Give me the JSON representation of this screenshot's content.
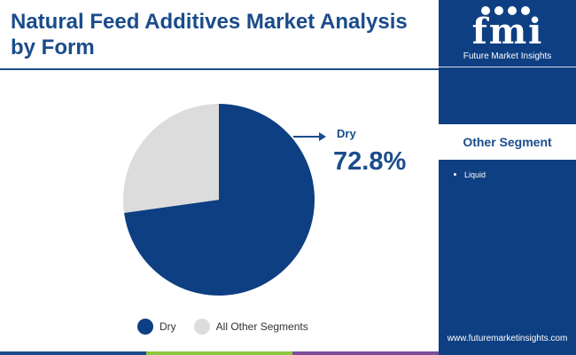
{
  "title": "Natural Feed Additives Market Analysis by Form",
  "brand": {
    "logo_mark": "fmi",
    "name": "Future Market Insights",
    "website": "www.futuremarketinsights.com"
  },
  "other_segment": {
    "title": "Other Segment",
    "items": [
      "Liquid"
    ]
  },
  "callout": {
    "label": "Dry",
    "value": "72.8%"
  },
  "colors": {
    "primary": "#0e3f82",
    "title": "#1a4c8b",
    "other": "#dcdcdc",
    "bar": [
      "#1a4c8b",
      "#8dc63f",
      "#7b4d9a",
      "#0e3f82"
    ]
  },
  "chart_data": {
    "type": "pie",
    "categories": [
      "Dry",
      "All Other Segments"
    ],
    "values": [
      72.8,
      27.2
    ],
    "colors": [
      "#0e3f82",
      "#dcdcdc"
    ],
    "title": "Natural Feed Additives Market Analysis by Form",
    "legend": "bottom",
    "start_angle": "12 o'clock, clockwise"
  }
}
